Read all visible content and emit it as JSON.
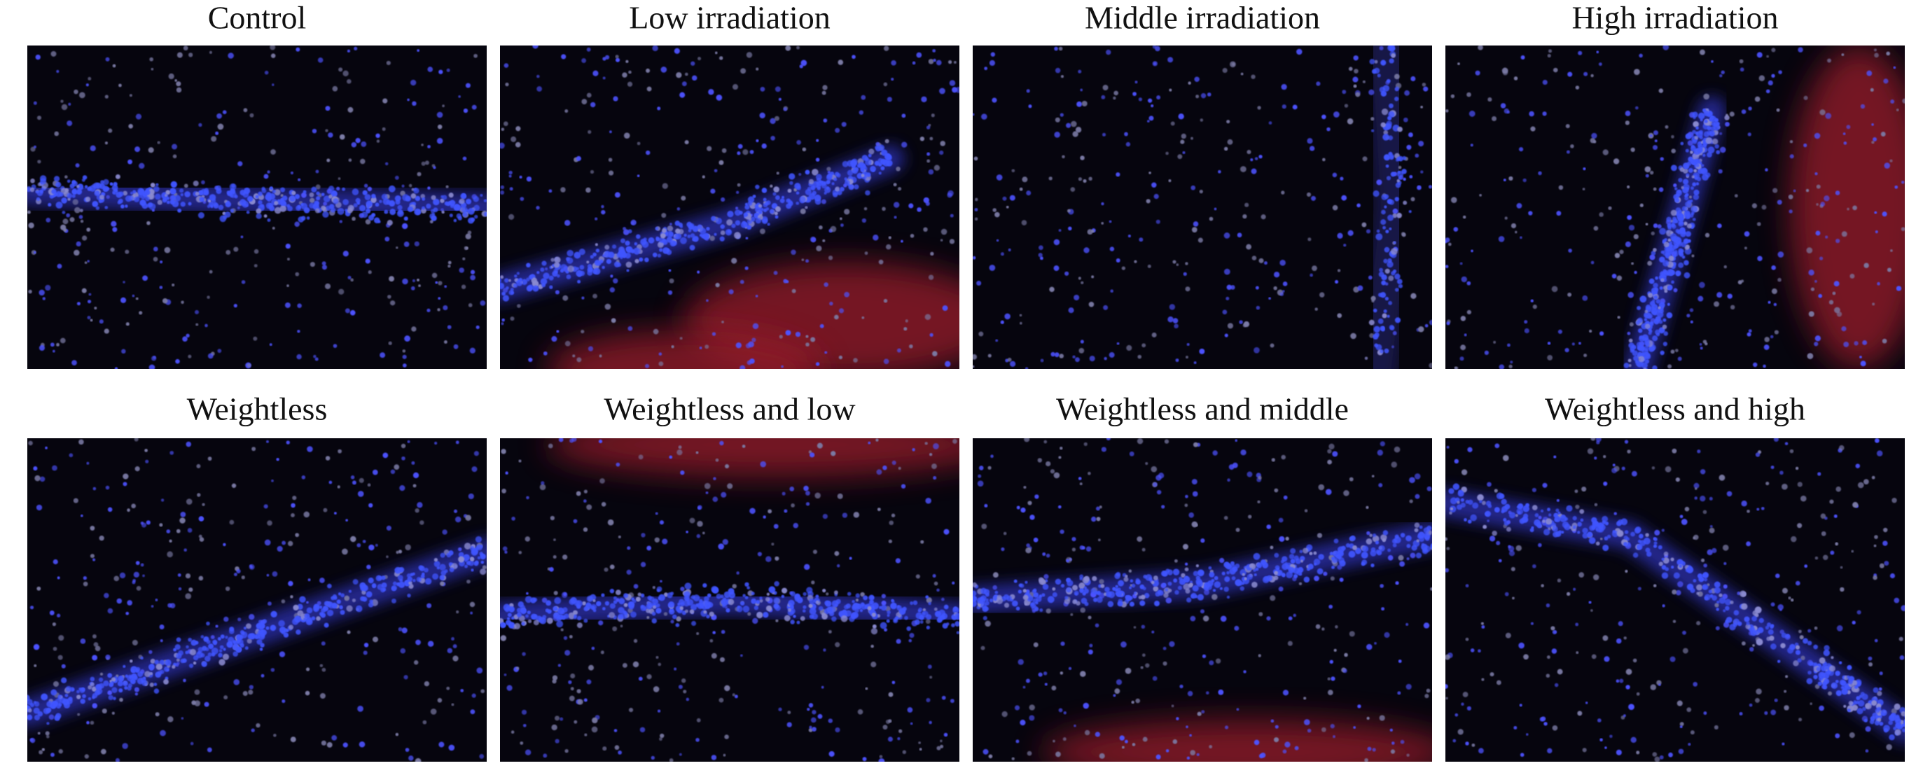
{
  "panels": [
    "Control",
    "Low irradiation",
    "Middle irradiation",
    "High irradiation",
    "Weightless",
    "Weightless and low",
    "Weightless and middle",
    "Weightless and high"
  ]
}
